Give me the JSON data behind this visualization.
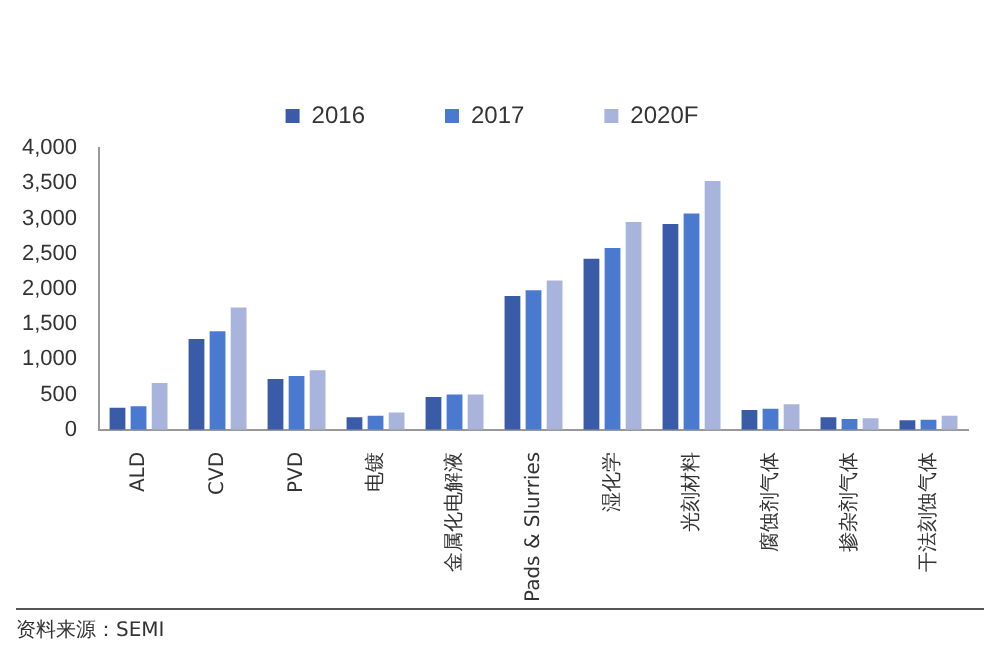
{
  "chart_data": {
    "type": "bar",
    "categories": [
      "ALD",
      "CVD",
      "PVD",
      "电镀",
      "金属化电解液",
      "Pads & Slurries",
      "湿化学",
      "光刻材料",
      "腐蚀剂气体",
      "掺杂剂气体",
      "干法刻蚀气体"
    ],
    "series": [
      {
        "name": "2016",
        "color": "#3a5ba8",
        "values": [
          315,
          1290,
          720,
          180,
          465,
          1900,
          2430,
          2920,
          280,
          180,
          135
        ]
      },
      {
        "name": "2017",
        "color": "#4a7ad0",
        "values": [
          335,
          1400,
          765,
          200,
          500,
          1980,
          2580,
          3070,
          300,
          155,
          145
        ]
      },
      {
        "name": "2020F",
        "color": "#a9b4dc",
        "values": [
          665,
          1735,
          845,
          245,
          500,
          2120,
          2950,
          3530,
          365,
          165,
          200
        ]
      }
    ],
    "ylim": [
      0,
      4000
    ],
    "yticks": [
      {
        "value": 0,
        "label": "0"
      },
      {
        "value": 500,
        "label": "500"
      },
      {
        "value": 1000,
        "label": "1,000"
      },
      {
        "value": 1500,
        "label": "1,500"
      },
      {
        "value": 2000,
        "label": "2,000"
      },
      {
        "value": 2500,
        "label": "2,500"
      },
      {
        "value": 3000,
        "label": "3,000"
      },
      {
        "value": 3500,
        "label": "3,500"
      },
      {
        "value": 4000,
        "label": "4,000"
      }
    ],
    "legend": "top",
    "grid": false,
    "annotations": [
      "资料来源：SEMI"
    ]
  }
}
